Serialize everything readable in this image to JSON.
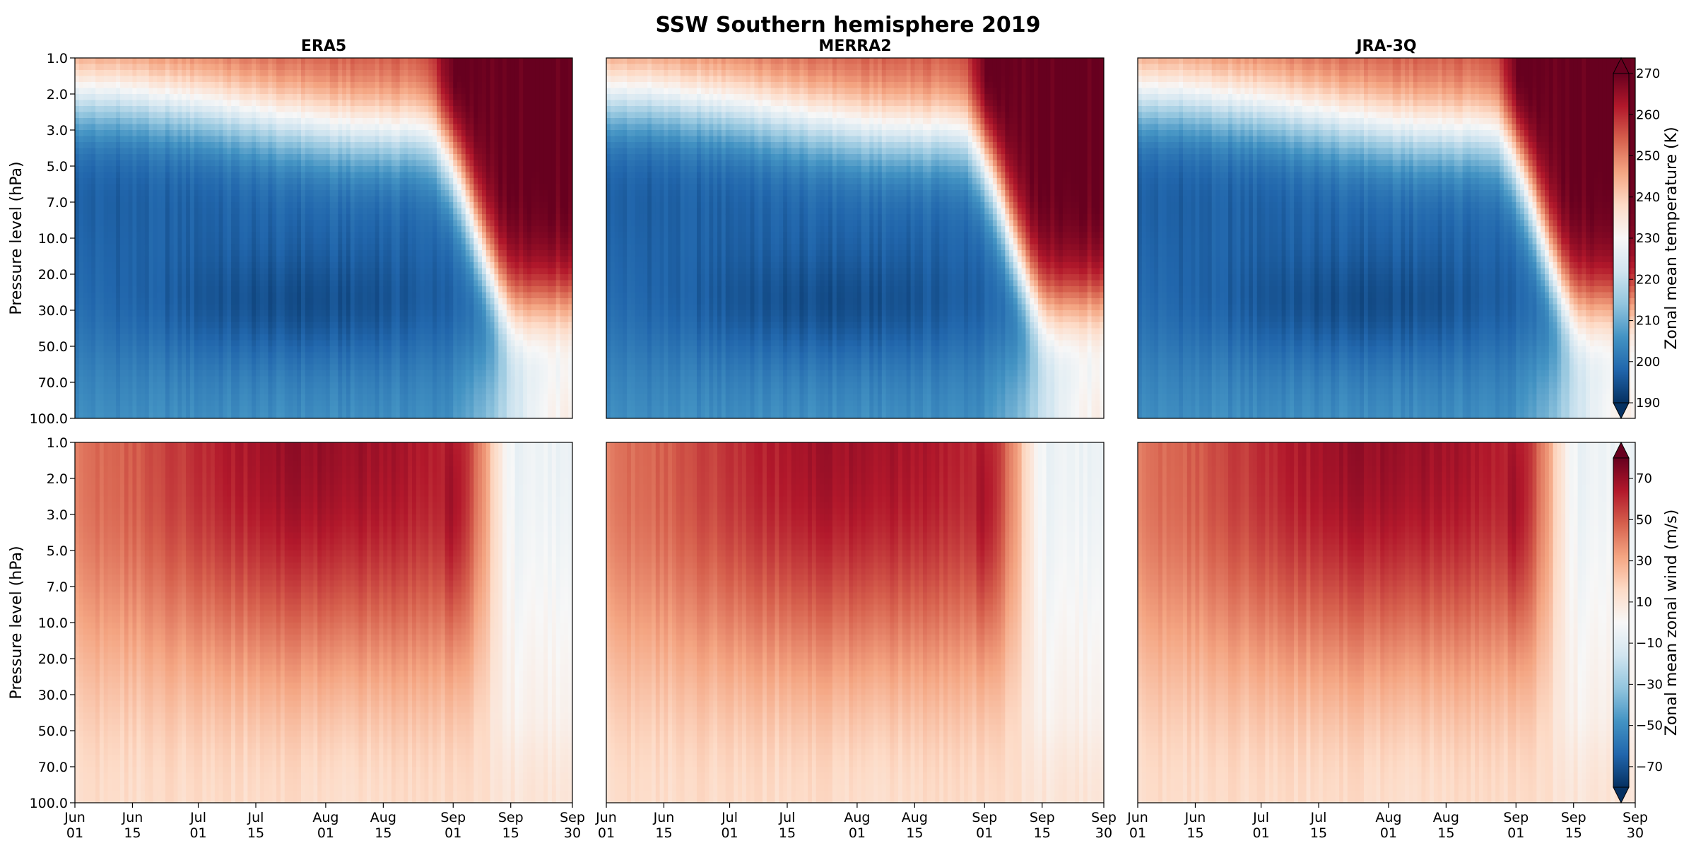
{
  "chart_data": {
    "type": "heatmap",
    "title": "SSW Southern hemisphere 2019",
    "columns": [
      "ERA5",
      "MERRA2",
      "JRA-3Q"
    ],
    "ylabel": "Pressure level (hPa)",
    "y_levels": [
      1.0,
      2.0,
      3.0,
      5.0,
      7.0,
      10.0,
      20.0,
      30.0,
      50.0,
      70.0,
      100.0
    ],
    "y_tick_labels": [
      "1.0",
      "2.0",
      "3.0",
      "5.0",
      "7.0",
      "10.0",
      "20.0",
      "30.0",
      "50.0",
      "70.0",
      "100.0"
    ],
    "x_ticks": [
      {
        "month": "Jun",
        "day": "01",
        "date": "2019-06-01"
      },
      {
        "month": "Jun",
        "day": "15",
        "date": "2019-06-15"
      },
      {
        "month": "Jul",
        "day": "01",
        "date": "2019-07-01"
      },
      {
        "month": "Jul",
        "day": "15",
        "date": "2019-07-15"
      },
      {
        "month": "Aug",
        "day": "01",
        "date": "2019-08-01"
      },
      {
        "month": "Aug",
        "day": "15",
        "date": "2019-08-15"
      },
      {
        "month": "Sep",
        "day": "01",
        "date": "2019-09-01"
      },
      {
        "month": "Sep",
        "day": "15",
        "date": "2019-09-15"
      },
      {
        "month": "Sep",
        "day": "30",
        "date": "2019-09-30"
      }
    ],
    "xlim": [
      "2019-06-01",
      "2019-09-30"
    ],
    "colormap": "RdBu_r",
    "rows": [
      {
        "variable": "temperature",
        "colorbar_label": "Zonal mean temperature (K)",
        "vmin": 190,
        "vmax": 270,
        "colorbar_ticks": [
          "190",
          "200",
          "210",
          "220",
          "230",
          "240",
          "250",
          "260",
          "270"
        ],
        "panels": [
          {
            "dataset": "ERA5",
            "upper_edge_start": 1.3,
            "upper_edge_end": 1.3,
            "warming_onset": "2019-08-28",
            "descent_bottom": 30.0,
            "descent_date": "2019-09-18",
            "cold_core_min": 190,
            "bottom_warm_end": 225
          },
          {
            "dataset": "MERRA2",
            "upper_edge_start": 1.4,
            "upper_edge_end": 1.3,
            "warming_onset": "2019-08-29",
            "descent_bottom": 30.0,
            "descent_date": "2019-09-18",
            "cold_core_min": 190,
            "bottom_warm_end": 225
          },
          {
            "dataset": "JRA-3Q",
            "upper_edge_start": 1.3,
            "upper_edge_end": 1.3,
            "warming_onset": "2019-08-29",
            "descent_bottom": 30.0,
            "descent_date": "2019-09-18",
            "cold_core_min": 190,
            "bottom_warm_end": 225
          }
        ]
      },
      {
        "variable": "zonal_wind",
        "colorbar_label": "Zonal mean zonal wind (m/s)",
        "vmin": -80,
        "vmax": 80,
        "colorbar_ticks": [
          "70",
          "50",
          "30",
          "10",
          "−10",
          "−30",
          "−50",
          "−70"
        ],
        "colorbar_tick_values": [
          70,
          50,
          30,
          10,
          -10,
          -30,
          -50,
          -70
        ],
        "panels": [
          {
            "dataset": "ERA5",
            "max_wind": 70,
            "max_wind_date": "2019-08-01",
            "max_wind_level": 2.0,
            "reversal_start": "2019-09-05",
            "min_wind": -5
          },
          {
            "dataset": "MERRA2",
            "max_wind": 68,
            "max_wind_date": "2019-08-01",
            "max_wind_level": 2.0,
            "reversal_start": "2019-09-05",
            "min_wind": -5
          },
          {
            "dataset": "JRA-3Q",
            "max_wind": 70,
            "max_wind_date": "2019-08-01",
            "max_wind_level": 2.0,
            "reversal_start": "2019-09-05",
            "min_wind": -5
          }
        ]
      }
    ]
  }
}
